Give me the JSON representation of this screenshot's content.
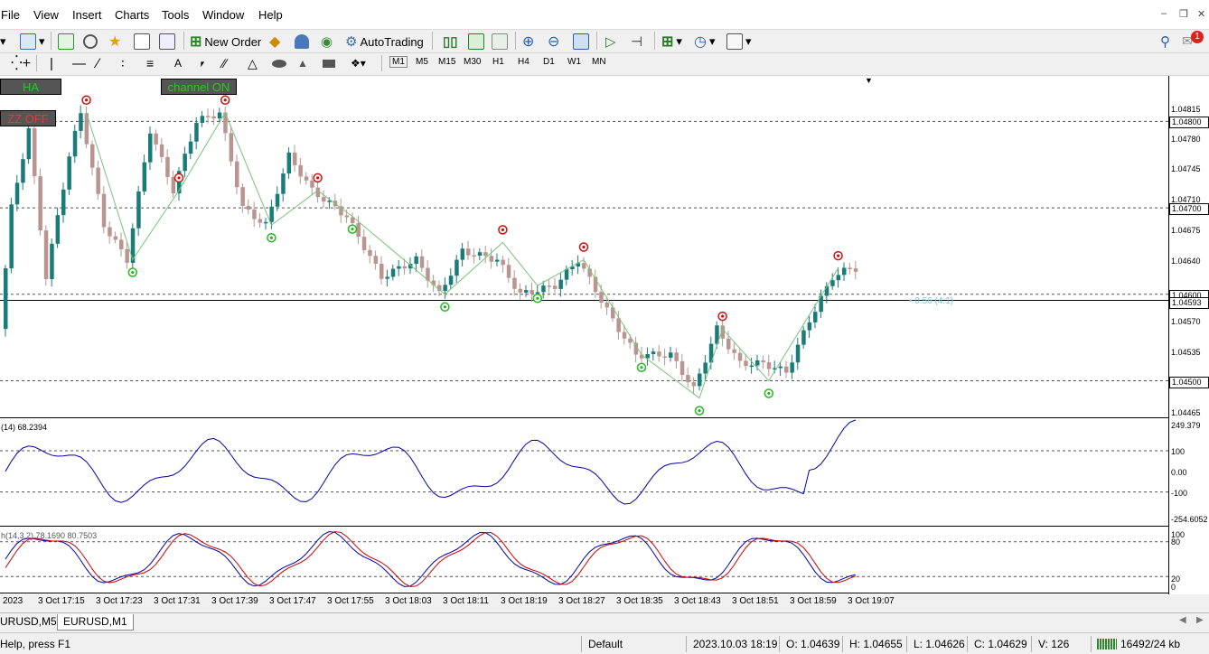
{
  "menu": {
    "items": [
      "File",
      "View",
      "Insert",
      "Charts",
      "Tools",
      "Window",
      "Help"
    ]
  },
  "toolbar": {
    "new_order_label": "New Order",
    "autotrading_label": "AutoTrading",
    "notification_count": "1"
  },
  "timeframes": [
    "M1",
    "M5",
    "M15",
    "M30",
    "H1",
    "H4",
    "D1",
    "W1",
    "MN"
  ],
  "indicator_buttons": {
    "ha": "HA",
    "channel": "channel ON",
    "zz": "ZZ OFF"
  },
  "colors": {
    "bull_candle": "#1a7c78",
    "bear_candle": "#b89590",
    "zigzag": "#7ac27a",
    "indicator_line": "#0000aa",
    "stoch_signal": "#cc0000",
    "channel_btn_text": "#22cc22",
    "zz_btn_text": "#ff3030",
    "level_label": "#66ccdd"
  },
  "price_axis": {
    "labels": [
      "1.04815",
      "1.04780",
      "1.04745",
      "1.04710",
      "1.04675",
      "1.04640",
      "1.04570",
      "1.04535",
      "1.04465"
    ],
    "level_boxes": [
      "1.04800",
      "1.04700",
      "1.04600",
      "1.04593",
      "1.04500"
    ]
  },
  "level_label": "• 0.56 (4.1)",
  "cci": {
    "label": "(14) 68.2394",
    "axis": [
      "249.379",
      "100",
      "0.00",
      "-100",
      "-254.6052"
    ]
  },
  "stoch": {
    "label": "h(14,3,2) 78.1690 80.7503",
    "axis": [
      "100",
      "80",
      "20",
      "0"
    ]
  },
  "time_axis": [
    "2023",
    "3 Oct 17:15",
    "3 Oct 17:23",
    "3 Oct 17:31",
    "3 Oct 17:39",
    "3 Oct 17:47",
    "3 Oct 17:55",
    "3 Oct 18:03",
    "3 Oct 18:11",
    "3 Oct 18:19",
    "3 Oct 18:27",
    "3 Oct 18:35",
    "3 Oct 18:43",
    "3 Oct 18:51",
    "3 Oct 18:59",
    "3 Oct 19:07"
  ],
  "tabs": [
    "URUSD,M5",
    "EURUSD,M1"
  ],
  "status": {
    "help": "Help, press F1",
    "profile": "Default",
    "datetime": "2023.10.03 18:19",
    "open": "O: 1.04639",
    "high": "H: 1.04655",
    "low": "L: 1.04626",
    "close": "C: 1.04629",
    "volume": "V: 126",
    "traffic": "16492/24 kb"
  }
}
